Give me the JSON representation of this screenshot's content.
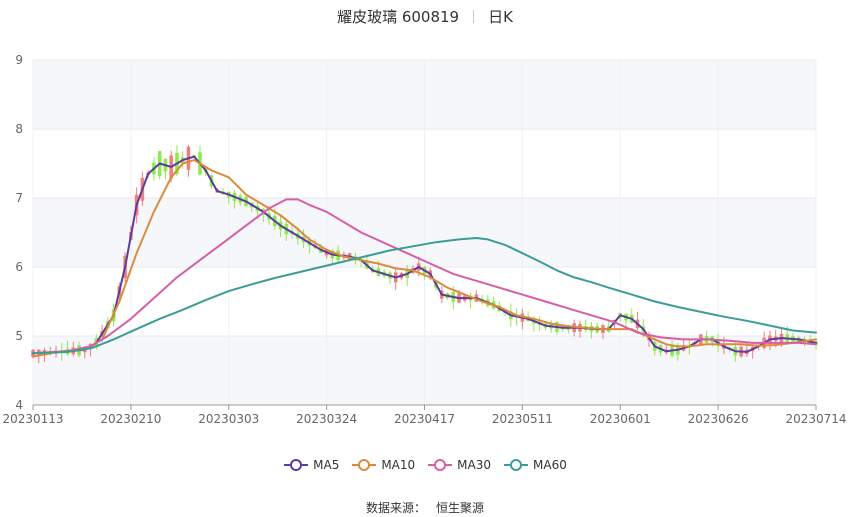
{
  "header": {
    "stock": "耀皮玻璃 600819",
    "period": "日K"
  },
  "source": {
    "label": "数据来源：",
    "provider": "恒生聚源"
  },
  "chart_data": {
    "type": "candlestick",
    "ylim": [
      4,
      9
    ],
    "yticks": [
      4,
      5,
      6,
      7,
      8,
      9
    ],
    "xticks": [
      "20230113",
      "20230210",
      "20230303",
      "20230324",
      "20230417",
      "20230511",
      "20230601",
      "20230626",
      "20230714"
    ],
    "colors": {
      "up": "#f07f7f",
      "down": "#8ee94e",
      "grid": "#e6e8ee",
      "band": "#f6f7fb"
    },
    "series": [
      {
        "name": "MA5",
        "color": "#5c3b9e",
        "values": [
          [
            0,
            4.75
          ],
          [
            5,
            4.77
          ],
          [
            9,
            4.8
          ],
          [
            11,
            4.9
          ],
          [
            14,
            5.3
          ],
          [
            16,
            6.0
          ],
          [
            18,
            6.9
          ],
          [
            20,
            7.35
          ],
          [
            22,
            7.5
          ],
          [
            24,
            7.45
          ],
          [
            26,
            7.55
          ],
          [
            28,
            7.6
          ],
          [
            30,
            7.4
          ],
          [
            32,
            7.1
          ],
          [
            34,
            7.05
          ],
          [
            37,
            6.95
          ],
          [
            40,
            6.8
          ],
          [
            43,
            6.6
          ],
          [
            46,
            6.45
          ],
          [
            48,
            6.35
          ],
          [
            50,
            6.25
          ],
          [
            52,
            6.18
          ],
          [
            55,
            6.15
          ],
          [
            57,
            6.1
          ],
          [
            59,
            5.95
          ],
          [
            61,
            5.9
          ],
          [
            63,
            5.85
          ],
          [
            65,
            5.9
          ],
          [
            67,
            6.0
          ],
          [
            69,
            5.9
          ],
          [
            71,
            5.6
          ],
          [
            74,
            5.55
          ],
          [
            77,
            5.55
          ],
          [
            80,
            5.45
          ],
          [
            83,
            5.3
          ],
          [
            86,
            5.25
          ],
          [
            89,
            5.15
          ],
          [
            92,
            5.12
          ],
          [
            95,
            5.12
          ],
          [
            98,
            5.1
          ],
          [
            100,
            5.1
          ],
          [
            102,
            5.3
          ],
          [
            104,
            5.25
          ],
          [
            106,
            5.1
          ],
          [
            108,
            4.85
          ],
          [
            110,
            4.78
          ],
          [
            112,
            4.8
          ],
          [
            114,
            4.85
          ],
          [
            116,
            4.95
          ],
          [
            118,
            4.95
          ],
          [
            120,
            4.85
          ],
          [
            122,
            4.78
          ],
          [
            124,
            4.77
          ],
          [
            126,
            4.85
          ],
          [
            128,
            4.95
          ],
          [
            130,
            4.97
          ],
          [
            133,
            4.95
          ],
          [
            136,
            4.9
          ]
        ]
      },
      {
        "name": "MA10",
        "color": "#dd8a3c",
        "values": [
          [
            0,
            4.7
          ],
          [
            5,
            4.78
          ],
          [
            9,
            4.8
          ],
          [
            12,
            4.95
          ],
          [
            15,
            5.5
          ],
          [
            18,
            6.2
          ],
          [
            21,
            6.8
          ],
          [
            24,
            7.3
          ],
          [
            26,
            7.5
          ],
          [
            28,
            7.55
          ],
          [
            31,
            7.4
          ],
          [
            34,
            7.3
          ],
          [
            37,
            7.05
          ],
          [
            40,
            6.9
          ],
          [
            43,
            6.75
          ],
          [
            46,
            6.55
          ],
          [
            48,
            6.4
          ],
          [
            51,
            6.25
          ],
          [
            54,
            6.15
          ],
          [
            57,
            6.1
          ],
          [
            60,
            6.05
          ],
          [
            63,
            5.98
          ],
          [
            66,
            5.95
          ],
          [
            69,
            5.85
          ],
          [
            72,
            5.7
          ],
          [
            75,
            5.6
          ],
          [
            78,
            5.5
          ],
          [
            81,
            5.42
          ],
          [
            84,
            5.3
          ],
          [
            87,
            5.25
          ],
          [
            90,
            5.18
          ],
          [
            93,
            5.14
          ],
          [
            96,
            5.12
          ],
          [
            99,
            5.1
          ],
          [
            102,
            5.1
          ],
          [
            104,
            5.1
          ],
          [
            106,
            5.02
          ],
          [
            108,
            4.95
          ],
          [
            110,
            4.88
          ],
          [
            112,
            4.85
          ],
          [
            114,
            4.85
          ],
          [
            117,
            4.88
          ],
          [
            120,
            4.88
          ],
          [
            123,
            4.88
          ],
          [
            126,
            4.86
          ],
          [
            129,
            4.87
          ],
          [
            132,
            4.9
          ],
          [
            136,
            4.95
          ]
        ]
      },
      {
        "name": "MA30",
        "color": "#d65fa5",
        "values": [
          [
            0,
            4.75
          ],
          [
            6,
            4.78
          ],
          [
            10,
            4.85
          ],
          [
            13,
            5.0
          ],
          [
            17,
            5.25
          ],
          [
            21,
            5.55
          ],
          [
            25,
            5.85
          ],
          [
            29,
            6.1
          ],
          [
            33,
            6.35
          ],
          [
            37,
            6.6
          ],
          [
            41,
            6.85
          ],
          [
            44,
            6.98
          ],
          [
            46,
            6.98
          ],
          [
            48,
            6.9
          ],
          [
            51,
            6.8
          ],
          [
            54,
            6.65
          ],
          [
            57,
            6.5
          ],
          [
            61,
            6.35
          ],
          [
            65,
            6.2
          ],
          [
            69,
            6.05
          ],
          [
            73,
            5.9
          ],
          [
            77,
            5.8
          ],
          [
            81,
            5.7
          ],
          [
            85,
            5.6
          ],
          [
            89,
            5.5
          ],
          [
            93,
            5.4
          ],
          [
            97,
            5.3
          ],
          [
            101,
            5.2
          ],
          [
            105,
            5.05
          ],
          [
            109,
            4.98
          ],
          [
            113,
            4.95
          ],
          [
            117,
            4.95
          ],
          [
            121,
            4.93
          ],
          [
            125,
            4.9
          ],
          [
            129,
            4.9
          ],
          [
            133,
            4.9
          ],
          [
            136,
            4.88
          ]
        ]
      },
      {
        "name": "MA60",
        "color": "#3b9d9a",
        "values": [
          [
            0,
            4.75
          ],
          [
            6,
            4.77
          ],
          [
            10,
            4.82
          ],
          [
            14,
            4.95
          ],
          [
            18,
            5.1
          ],
          [
            22,
            5.25
          ],
          [
            26,
            5.38
          ],
          [
            30,
            5.52
          ],
          [
            34,
            5.65
          ],
          [
            38,
            5.75
          ],
          [
            42,
            5.84
          ],
          [
            46,
            5.92
          ],
          [
            50,
            6.0
          ],
          [
            54,
            6.08
          ],
          [
            58,
            6.16
          ],
          [
            62,
            6.24
          ],
          [
            66,
            6.3
          ],
          [
            70,
            6.36
          ],
          [
            74,
            6.4
          ],
          [
            77,
            6.42
          ],
          [
            79,
            6.4
          ],
          [
            82,
            6.32
          ],
          [
            85,
            6.2
          ],
          [
            88,
            6.08
          ],
          [
            91,
            5.95
          ],
          [
            94,
            5.85
          ],
          [
            97,
            5.78
          ],
          [
            100,
            5.7
          ],
          [
            104,
            5.6
          ],
          [
            108,
            5.5
          ],
          [
            112,
            5.42
          ],
          [
            116,
            5.35
          ],
          [
            120,
            5.28
          ],
          [
            124,
            5.22
          ],
          [
            128,
            5.15
          ],
          [
            132,
            5.08
          ],
          [
            136,
            5.05
          ]
        ]
      }
    ]
  }
}
